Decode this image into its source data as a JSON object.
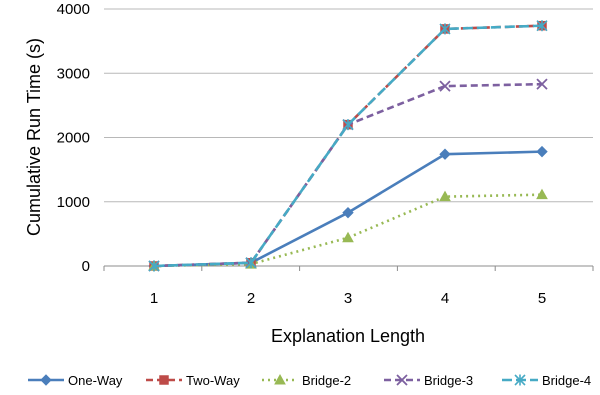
{
  "chart_data": {
    "type": "line",
    "title": "",
    "xlabel": "Explanation Length",
    "ylabel": "Cumulative Run Time (s)",
    "x": [
      1,
      2,
      3,
      4,
      5
    ],
    "categories": [
      "1",
      "2",
      "3",
      "4",
      "5"
    ],
    "ylim": [
      0,
      4000
    ],
    "yticks": [
      0,
      1000,
      2000,
      3000,
      4000
    ],
    "grid": "horizontal",
    "legend_position": "bottom",
    "series": [
      {
        "name": "One-Way",
        "values": [
          0,
          50,
          830,
          1740,
          1780
        ],
        "color": "#4a7ebb",
        "marker": "diamond",
        "line_style": "solid"
      },
      {
        "name": "Two-Way",
        "values": [
          0,
          50,
          2200,
          3690,
          3740
        ],
        "color": "#be4b48",
        "marker": "square",
        "line_style": "dashed"
      },
      {
        "name": "Bridge-2",
        "values": [
          0,
          30,
          440,
          1080,
          1110
        ],
        "color": "#98b954",
        "marker": "triangle",
        "line_style": "dotted"
      },
      {
        "name": "Bridge-3",
        "values": [
          0,
          50,
          2200,
          2800,
          2830
        ],
        "color": "#7d60a0",
        "marker": "x",
        "line_style": "dashed"
      },
      {
        "name": "Bridge-4",
        "values": [
          0,
          50,
          2200,
          3690,
          3740
        ],
        "color": "#46aac5",
        "marker": "asterisk",
        "line_style": "longdash"
      }
    ]
  }
}
